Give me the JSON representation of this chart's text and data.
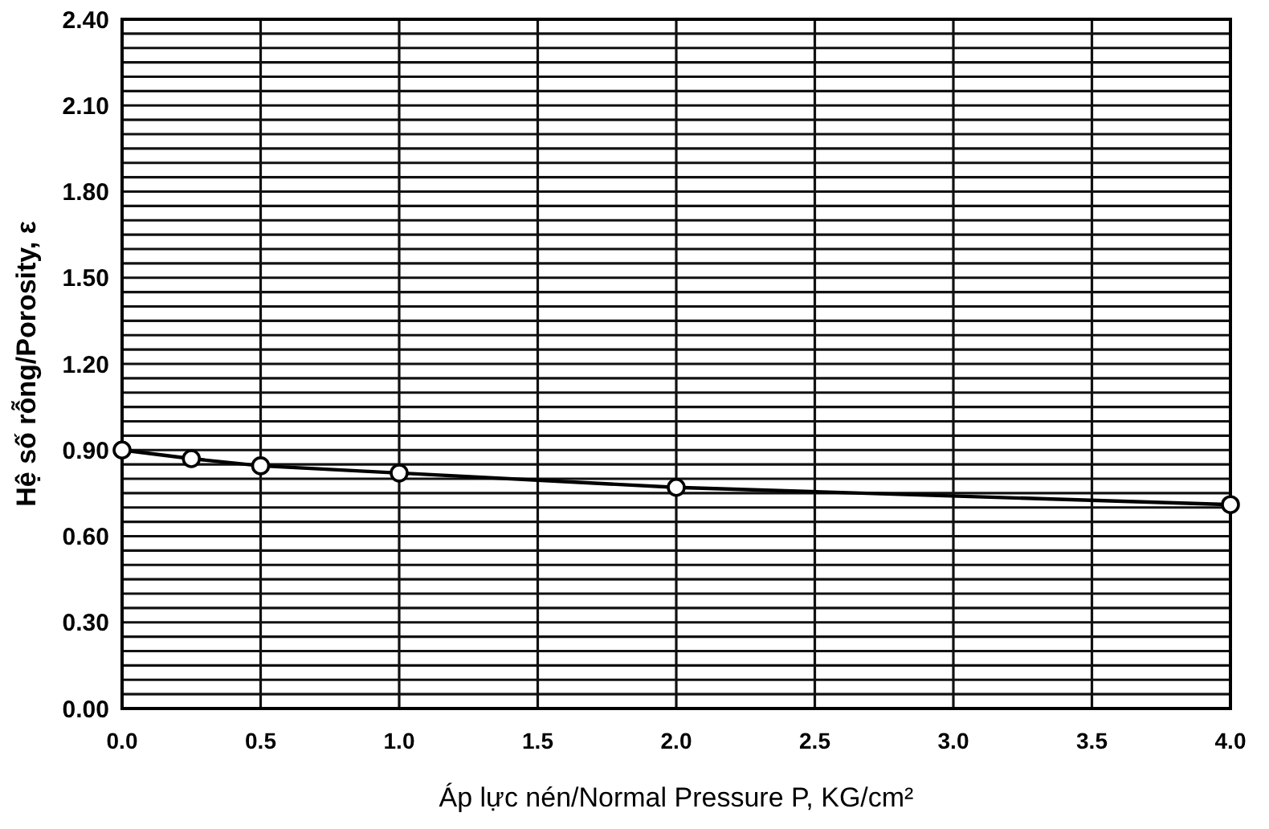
{
  "chart_data": {
    "type": "line",
    "xlabel": "Áp lực nén/Normal Pressure P, KG/cm²",
    "ylabel": "Hệ số rỗng/Porosity, ε",
    "x": [
      0,
      0.25,
      0.5,
      1.0,
      2.0,
      4.0
    ],
    "series": [
      {
        "color": "#000000",
        "values": [
          0.9,
          0.87,
          0.845,
          0.82,
          0.77,
          0.71
        ]
      }
    ],
    "xlim": [
      0,
      4
    ],
    "xticks": [
      {
        "value": 0,
        "label": "0.0"
      },
      {
        "value": 0.5,
        "label": "0.5"
      },
      {
        "value": 1,
        "label": "1.0"
      },
      {
        "value": 1.5,
        "label": "1.5"
      },
      {
        "value": 2,
        "label": "2.0"
      },
      {
        "value": 2.5,
        "label": "2.5"
      },
      {
        "value": 3,
        "label": "3.0"
      },
      {
        "value": 3.5,
        "label": "3.5"
      },
      {
        "value": 4,
        "label": "4.0"
      }
    ],
    "ylim": [
      0,
      2.4
    ],
    "yticks": [
      {
        "value": 0,
        "label": "0.00"
      },
      {
        "value": 0.05,
        "label": null
      },
      {
        "value": 0.1,
        "label": null
      },
      {
        "value": 0.15,
        "label": null
      },
      {
        "value": 0.2,
        "label": null
      },
      {
        "value": 0.25,
        "label": null
      },
      {
        "value": 0.3,
        "label": "0.30"
      },
      {
        "value": 0.35,
        "label": null
      },
      {
        "value": 0.4,
        "label": null
      },
      {
        "value": 0.45,
        "label": null
      },
      {
        "value": 0.5,
        "label": null
      },
      {
        "value": 0.55,
        "label": null
      },
      {
        "value": 0.6,
        "label": "0.60"
      },
      {
        "value": 0.65,
        "label": null
      },
      {
        "value": 0.7,
        "label": null
      },
      {
        "value": 0.75,
        "label": null
      },
      {
        "value": 0.8,
        "label": null
      },
      {
        "value": 0.85,
        "label": null
      },
      {
        "value": 0.9,
        "label": "0.90"
      },
      {
        "value": 0.95,
        "label": null
      },
      {
        "value": 1.0,
        "label": null
      },
      {
        "value": 1.05,
        "label": null
      },
      {
        "value": 1.1,
        "label": null
      },
      {
        "value": 1.15,
        "label": null
      },
      {
        "value": 1.2,
        "label": "1.20"
      },
      {
        "value": 1.25,
        "label": null
      },
      {
        "value": 1.3,
        "label": null
      },
      {
        "value": 1.35,
        "label": null
      },
      {
        "value": 1.4,
        "label": null
      },
      {
        "value": 1.45,
        "label": null
      },
      {
        "value": 1.5,
        "label": "1.50"
      },
      {
        "value": 1.55,
        "label": null
      },
      {
        "value": 1.6,
        "label": null
      },
      {
        "value": 1.65,
        "label": null
      },
      {
        "value": 1.7,
        "label": null
      },
      {
        "value": 1.75,
        "label": null
      },
      {
        "value": 1.8,
        "label": "1.80"
      },
      {
        "value": 1.85,
        "label": null
      },
      {
        "value": 1.9,
        "label": null
      },
      {
        "value": 1.95,
        "label": null
      },
      {
        "value": 2.0,
        "label": null
      },
      {
        "value": 2.05,
        "label": null
      },
      {
        "value": 2.1,
        "label": "2.10"
      },
      {
        "value": 2.15,
        "label": null
      },
      {
        "value": 2.2,
        "label": null
      },
      {
        "value": 2.25,
        "label": null
      },
      {
        "value": 2.3,
        "label": null
      },
      {
        "value": 2.35,
        "label": null
      },
      {
        "value": 2.4,
        "label": "2.40"
      }
    ],
    "grid": true,
    "marker": "circle",
    "line_style": "solid"
  }
}
